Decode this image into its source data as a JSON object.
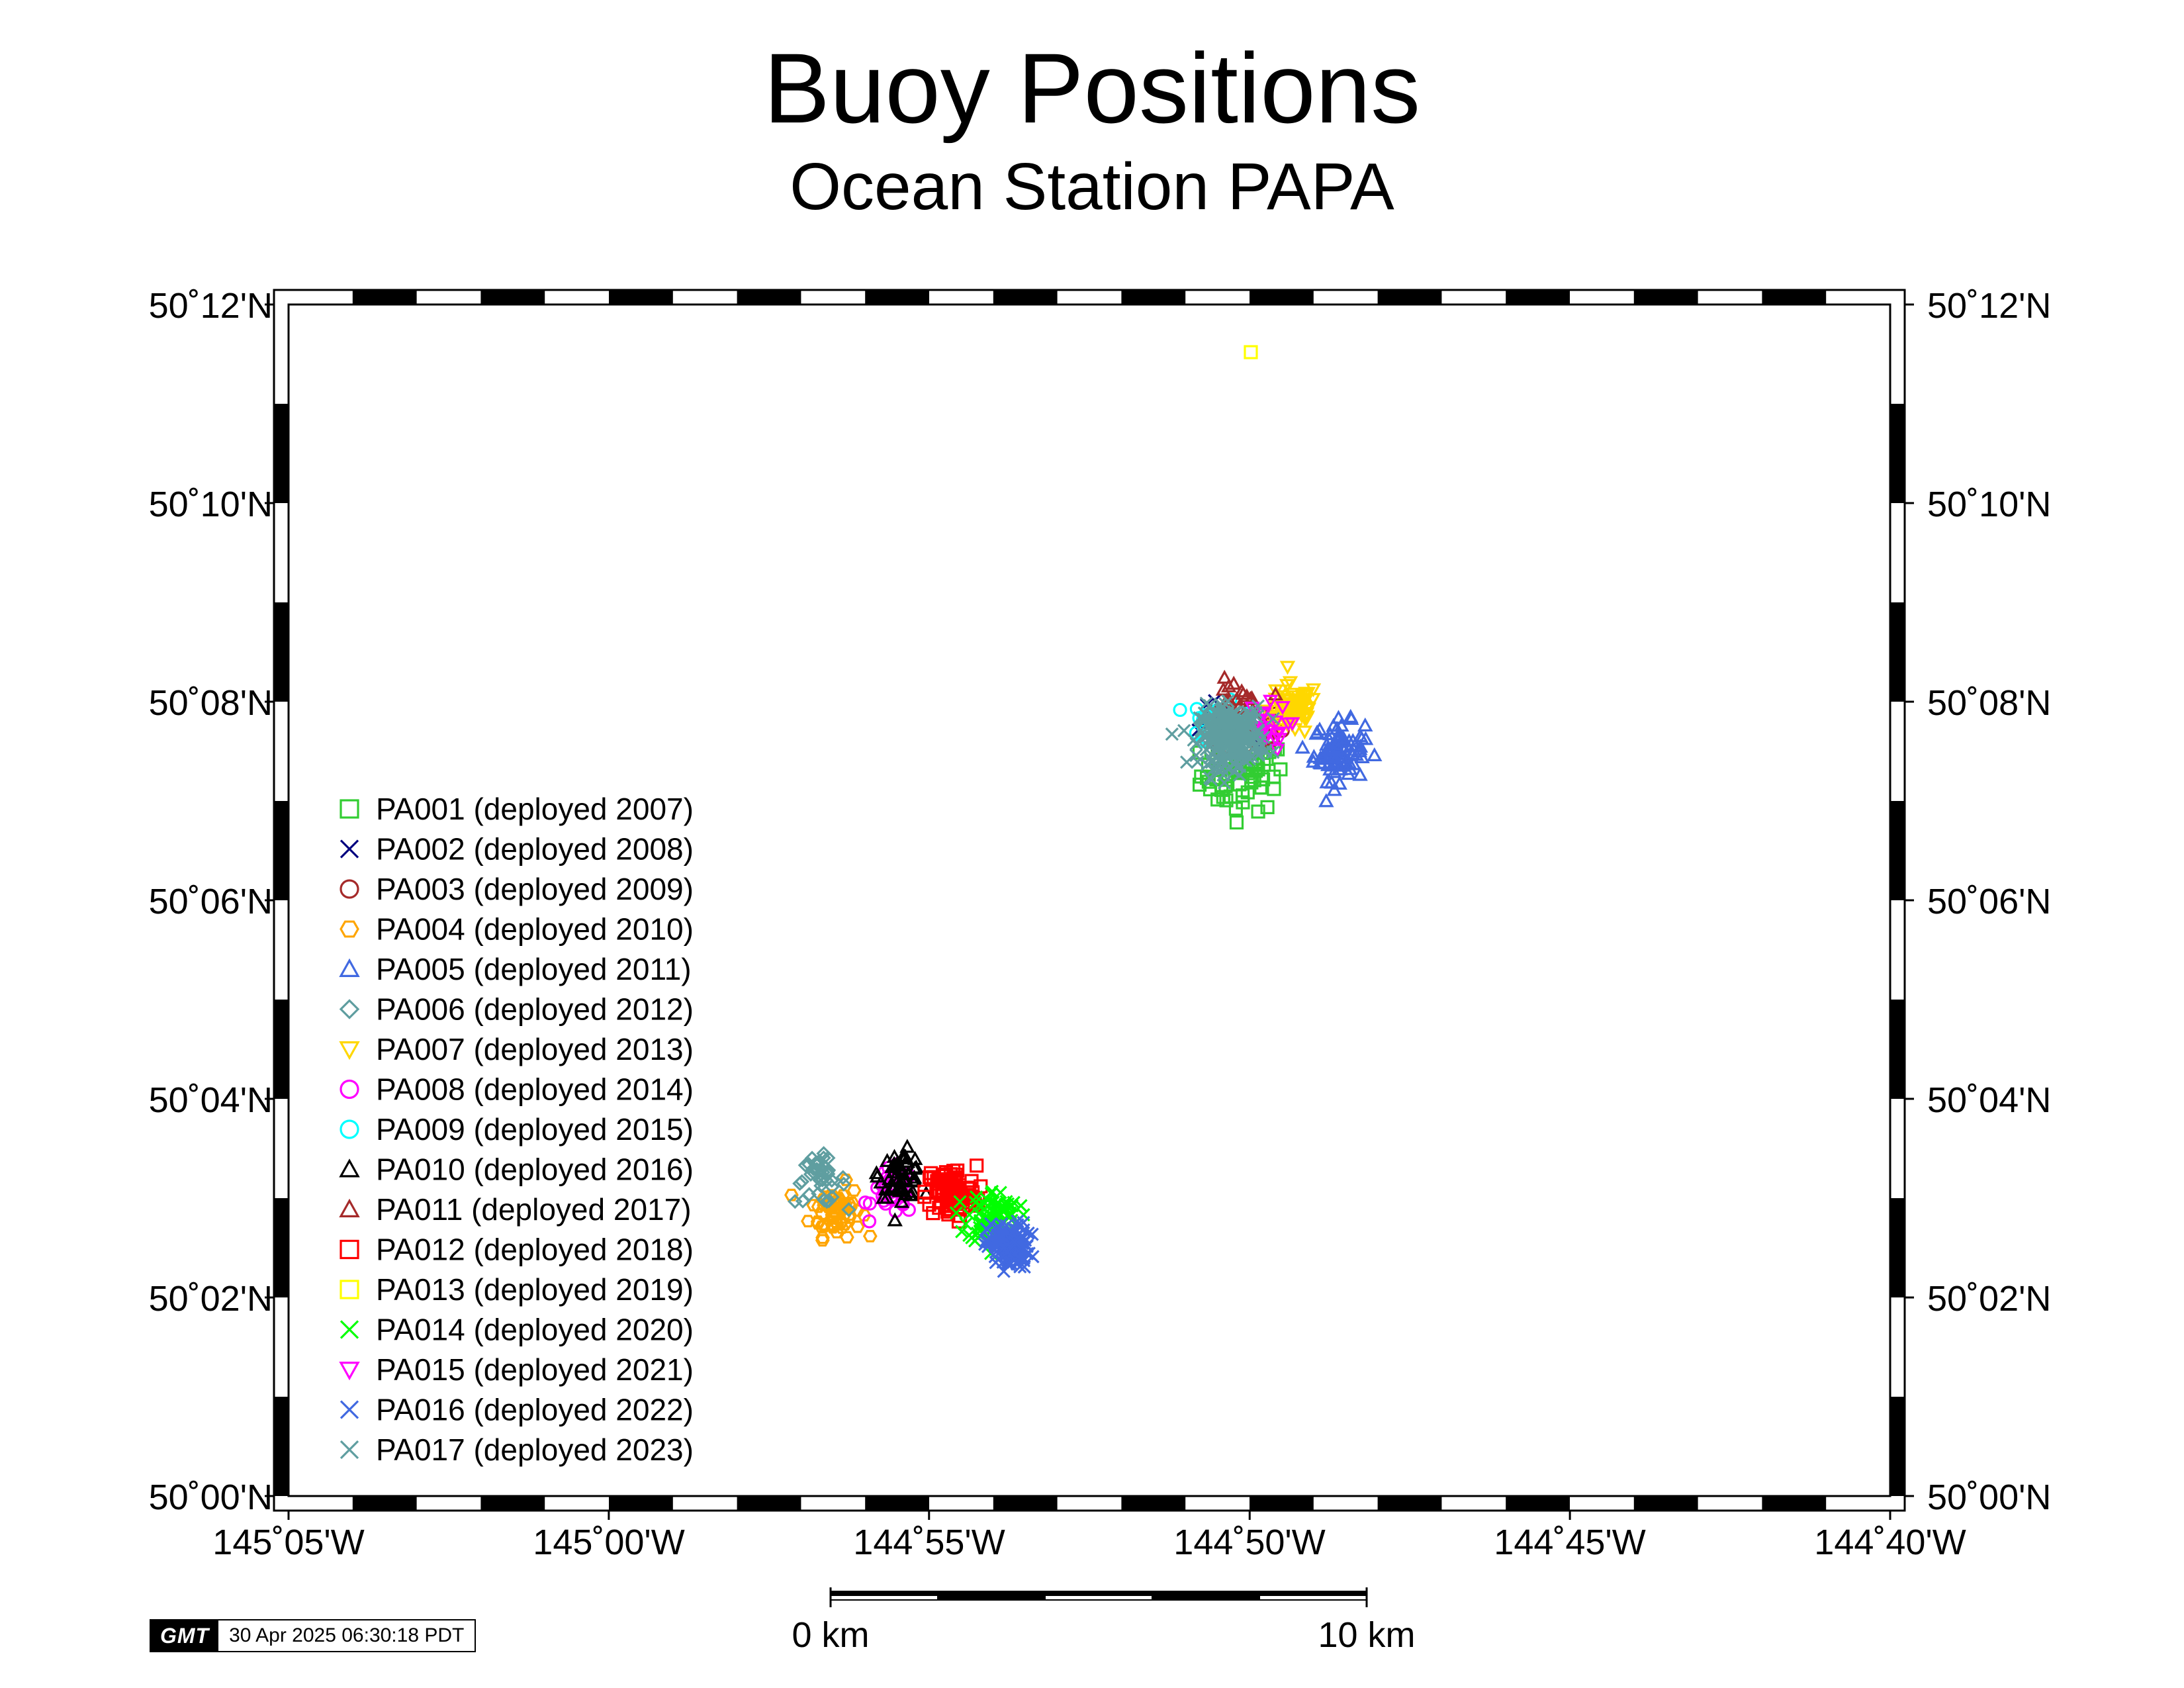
{
  "title": "Buoy Positions",
  "subtitle": "Ocean Station PAPA",
  "map": {
    "projection": "geographic",
    "lon_range": [
      -145.0833,
      -144.6667
    ],
    "lat_range": [
      50.0,
      50.2
    ],
    "frame_style": "checkered GMT fancy frame",
    "lat_ticks": [
      {
        "value": 50.2,
        "label": "50˚12'N"
      },
      {
        "value": 50.16667,
        "label": "50˚10'N"
      },
      {
        "value": 50.13333,
        "label": "50˚08'N"
      },
      {
        "value": 50.1,
        "label": "50˚06'N"
      },
      {
        "value": 50.06667,
        "label": "50˚04'N"
      },
      {
        "value": 50.03333,
        "label": "50˚02'N"
      },
      {
        "value": 50.0,
        "label": "50˚00'N"
      }
    ],
    "lon_ticks": [
      {
        "value": -145.0833,
        "label": "145˚05'W"
      },
      {
        "value": -145.0,
        "label": "145˚00'W"
      },
      {
        "value": -144.9167,
        "label": "144˚55'W"
      },
      {
        "value": -144.8333,
        "label": "144˚50'W"
      },
      {
        "value": -144.75,
        "label": "144˚45'W"
      },
      {
        "value": -144.6667,
        "label": "144˚40'W"
      }
    ]
  },
  "scale_bar": {
    "start_label": "0 km",
    "end_label": "10 km",
    "length_km": 10
  },
  "stamp": {
    "logo": "GMT",
    "timestamp": "30 Apr 2025 06:30:18 PDT"
  },
  "legend": {
    "placement": "left",
    "entries": [
      {
        "label": "PA001 (deployed 2007)",
        "symbol": "square",
        "color": "#32cd32"
      },
      {
        "label": "PA002 (deployed 2008)",
        "symbol": "x",
        "color": "#00007f"
      },
      {
        "label": "PA003 (deployed 2009)",
        "symbol": "circle",
        "color": "#a52a2a"
      },
      {
        "label": "PA004 (deployed 2010)",
        "symbol": "hexagon",
        "color": "#ffa500"
      },
      {
        "label": "PA005 (deployed 2011)",
        "symbol": "triangle",
        "color": "#4169e1"
      },
      {
        "label": "PA006 (deployed 2012)",
        "symbol": "diamond",
        "color": "#5f9ea0"
      },
      {
        "label": "PA007 (deployed 2013)",
        "symbol": "inverted-triangle",
        "color": "#ffd700"
      },
      {
        "label": "PA008 (deployed 2014)",
        "symbol": "circle",
        "color": "#ff00ff"
      },
      {
        "label": "PA009 (deployed 2015)",
        "symbol": "circle",
        "color": "#00ffff"
      },
      {
        "label": "PA010 (deployed 2016)",
        "symbol": "triangle",
        "color": "#000000"
      },
      {
        "label": "PA011 (deployed 2017)",
        "symbol": "triangle",
        "color": "#a52a2a"
      },
      {
        "label": "PA012 (deployed 2018)",
        "symbol": "square",
        "color": "#ff0000"
      },
      {
        "label": "PA013 (deployed 2019)",
        "symbol": "square",
        "color": "#ffff00"
      },
      {
        "label": "PA014 (deployed 2020)",
        "symbol": "x",
        "color": "#00ff00"
      },
      {
        "label": "PA015 (deployed 2021)",
        "symbol": "inverted-triangle",
        "color": "#ff00ff"
      },
      {
        "label": "PA016 (deployed 2022)",
        "symbol": "x",
        "color": "#4169e1"
      },
      {
        "label": "PA017 (deployed 2023)",
        "symbol": "x",
        "color": "#5f9ea0"
      }
    ]
  },
  "chart_data": {
    "type": "scatter",
    "xlabel": "",
    "ylabel": "",
    "xlim": [
      -145.0833,
      -144.6667
    ],
    "ylim": [
      50.0,
      50.2
    ],
    "series": [
      {
        "name": "PA001 (deployed 2007)",
        "center": [
          -144.835,
          50.121
        ],
        "spread": [
          0.01,
          0.0055
        ],
        "count": 70
      },
      {
        "name": "PA002 (deployed 2008)",
        "center": [
          -144.84,
          50.128
        ],
        "spread": [
          0.007,
          0.004
        ],
        "count": 30
      },
      {
        "name": "PA003 (deployed 2009)",
        "center": [
          -144.833,
          50.129
        ],
        "spread": [
          0.008,
          0.0045
        ],
        "count": 30
      },
      {
        "name": "PA004 (deployed 2010)",
        "center": [
          -144.941,
          50.048
        ],
        "spread": [
          0.006,
          0.004
        ],
        "count": 70
      },
      {
        "name": "PA005 (deployed 2011)",
        "center": [
          -144.81,
          50.125
        ],
        "spread": [
          0.006,
          0.0045
        ],
        "count": 90
      },
      {
        "name": "PA006 (deployed 2012)",
        "center": [
          -144.945,
          50.053
        ],
        "spread": [
          0.006,
          0.0035
        ],
        "count": 40
      },
      {
        "name": "PA007 (deployed 2013)",
        "center": [
          -144.822,
          50.132
        ],
        "spread": [
          0.006,
          0.004
        ],
        "count": 80
      },
      {
        "name": "PA008 (deployed 2014)",
        "center": [
          -144.926,
          50.051
        ],
        "spread": [
          0.005,
          0.0035
        ],
        "count": 40
      },
      {
        "name": "PA009 (deployed 2015)",
        "center": [
          -144.842,
          50.13
        ],
        "spread": [
          0.006,
          0.0035
        ],
        "count": 25
      },
      {
        "name": "PA010 (deployed 2016)",
        "center": [
          -144.924,
          50.054
        ],
        "spread": [
          0.005,
          0.0035
        ],
        "count": 60
      },
      {
        "name": "PA011 (deployed 2017)",
        "center": [
          -144.837,
          50.133
        ],
        "spread": [
          0.006,
          0.0035
        ],
        "count": 20
      },
      {
        "name": "PA012 (deployed 2018)",
        "center": [
          -144.911,
          50.051
        ],
        "spread": [
          0.006,
          0.004
        ],
        "count": 100
      },
      {
        "name": "PA013 (deployed 2019)",
        "center": [
          -144.833,
          50.192
        ],
        "spread": [
          0.0,
          0.0
        ],
        "count": 1
      },
      {
        "name": "PA014 (deployed 2020)",
        "center": [
          -144.9,
          50.047
        ],
        "spread": [
          0.006,
          0.004
        ],
        "count": 90
      },
      {
        "name": "PA015 (deployed 2021)",
        "center": [
          -144.83,
          50.129
        ],
        "spread": [
          0.006,
          0.0035
        ],
        "count": 25
      },
      {
        "name": "PA016 (deployed 2022)",
        "center": [
          -144.896,
          50.042
        ],
        "spread": [
          0.005,
          0.0035
        ],
        "count": 130
      },
      {
        "name": "PA017 (deployed 2023)",
        "center": [
          -144.838,
          50.1275
        ],
        "spread": [
          0.0075,
          0.0045
        ],
        "count": 260
      }
    ]
  }
}
